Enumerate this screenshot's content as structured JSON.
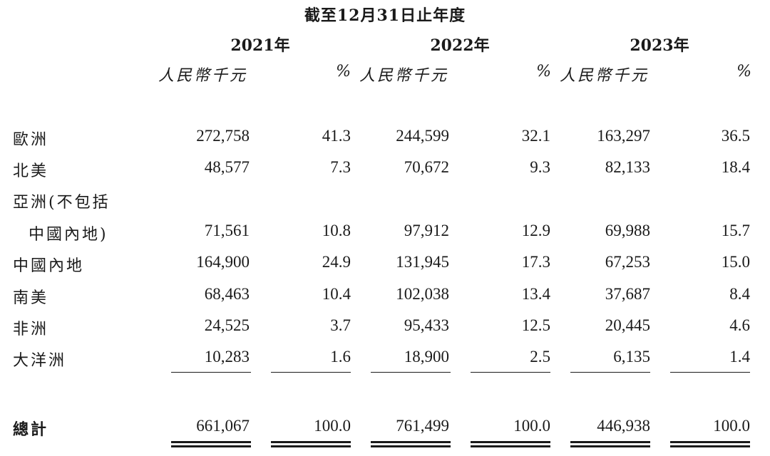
{
  "header": {
    "period": "截至12月31日止年度",
    "years": [
      "2021年",
      "2022年",
      "2023年"
    ],
    "unit_label": "人民幣千元",
    "pct_label": "%"
  },
  "rows": [
    {
      "label": "歐洲",
      "v": [
        "272,758",
        "41.3",
        "244,599",
        "32.1",
        "163,297",
        "36.5"
      ]
    },
    {
      "label": "北美",
      "v": [
        "48,577",
        "7.3",
        "70,672",
        "9.3",
        "82,133",
        "18.4"
      ]
    },
    {
      "label": "亞洲(不包括",
      "label2": "中國內地)",
      "v": [
        "71,561",
        "10.8",
        "97,912",
        "12.9",
        "69,988",
        "15.7"
      ]
    },
    {
      "label": "中國內地",
      "v": [
        "164,900",
        "24.9",
        "131,945",
        "17.3",
        "67,253",
        "15.0"
      ]
    },
    {
      "label": "南美",
      "v": [
        "68,463",
        "10.4",
        "102,038",
        "13.4",
        "37,687",
        "8.4"
      ]
    },
    {
      "label": "非洲",
      "v": [
        "24,525",
        "3.7",
        "95,433",
        "12.5",
        "20,445",
        "4.6"
      ]
    },
    {
      "label": "大洋洲",
      "v": [
        "10,283",
        "1.6",
        "18,900",
        "2.5",
        "6,135",
        "1.4"
      ]
    }
  ],
  "total": {
    "label": "總計",
    "v": [
      "661,067",
      "100.0",
      "761,499",
      "100.0",
      "446,938",
      "100.0"
    ]
  }
}
